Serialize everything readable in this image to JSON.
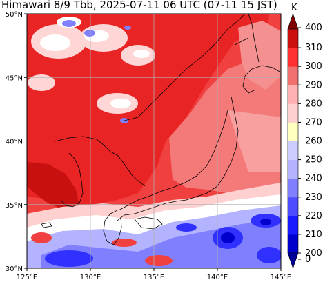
{
  "title": "Himawari 8/9 Tbb, 2025-07-11 06 UTC (07-11 15 JST)",
  "map": {
    "lon_range": [
      125,
      145
    ],
    "lat_range": [
      30,
      50
    ],
    "lon_ticks": [
      {
        "value": 125,
        "label": "125°E"
      },
      {
        "value": 130,
        "label": "130°E"
      },
      {
        "value": 135,
        "label": "135°E"
      },
      {
        "value": 140,
        "label": "140°E"
      },
      {
        "value": 145,
        "label": "145°E"
      }
    ],
    "lat_ticks": [
      {
        "value": 30,
        "label": "30°N"
      },
      {
        "value": 35,
        "label": "35°N"
      },
      {
        "value": 40,
        "label": "40°N"
      },
      {
        "value": 45,
        "label": "45°N"
      },
      {
        "value": 50,
        "label": "50°N"
      }
    ],
    "grid": true
  },
  "colorbar": {
    "unit": "K",
    "levels": [
      200,
      210,
      220,
      230,
      240,
      250,
      260,
      270,
      280,
      290,
      300,
      310
    ],
    "tick_labels": [
      "0",
      "200",
      "210",
      "220",
      "230",
      "240",
      "250",
      "260",
      "270",
      "280",
      "290",
      "300",
      "310",
      "400"
    ],
    "colors": [
      "#000099",
      "#0000cc",
      "#1a1aff",
      "#4d4dff",
      "#8080ff",
      "#b3b3ff",
      "#ccccff",
      "#ffffc0",
      "#ffd0d0",
      "#ffb0b0",
      "#f07070",
      "#ff3030",
      "#cc1010",
      "#800000"
    ],
    "extend": "both"
  },
  "colors": {
    "ocean_warm": "#f04040",
    "land_warm": "#e82020",
    "cloud_cold": "#ffffff",
    "deep_convection": "#2030e0",
    "coastline": "#000000",
    "gridline": "#b0b0b0"
  }
}
